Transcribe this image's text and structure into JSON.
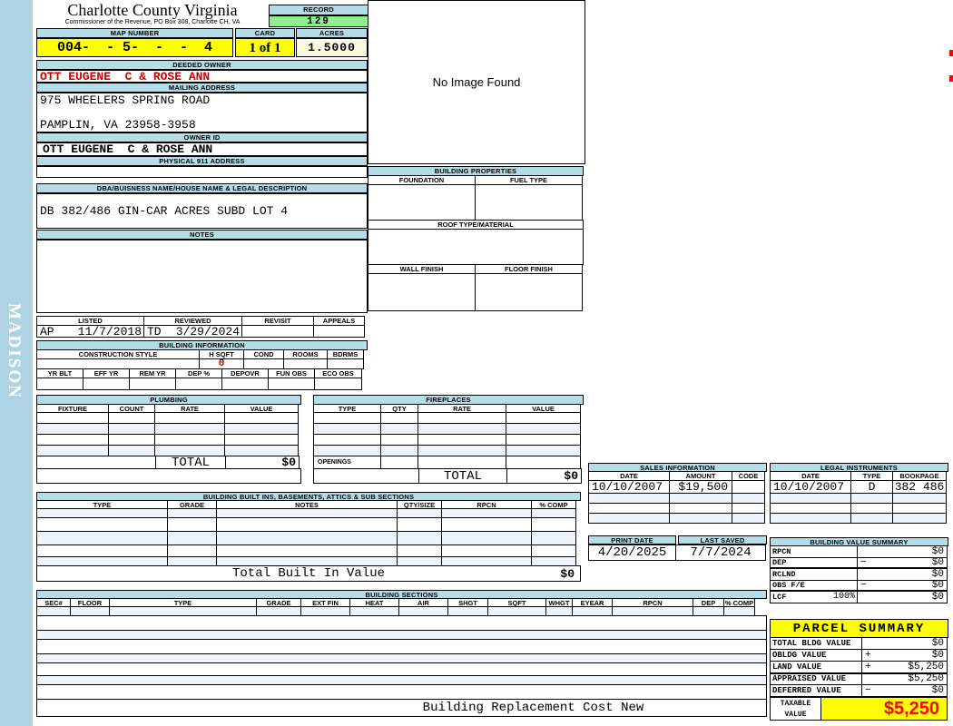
{
  "colors": {
    "header_blue": "#b6dce8",
    "sidebar_blue": "#aed3e2",
    "accent_yellow": "#ffff00",
    "record_green": "#90ee90",
    "acres_cream": "#fbf8e0",
    "owner_red": "#cc0000",
    "value_red": "#ff0000",
    "stripe_blue": "#eef3f9"
  },
  "sidebar": {
    "vertical_text": "MADISON"
  },
  "header": {
    "county_title": "Charlotte County Virginia",
    "county_subtitle": "Commissioner of the Revenue, PO Box 308, Charlotte CH, VA",
    "record_label": "RECORD",
    "record_value": "129",
    "map_number_label": "MAP NUMBER",
    "map_number_value": "004-  - 5-  -  -  4",
    "card_label": "CARD",
    "card_value": "1 of 1",
    "acres_label": "ACRES",
    "acres_value": "1.5000"
  },
  "owner": {
    "deeded_owner_label": "DEEDED OWNER",
    "deeded_owner_value": "OTT EUGENE  C & ROSE ANN",
    "mailing_address_label": "MAILING ADDRESS",
    "mailing_address_line1": "975 WHEELERS SPRING ROAD",
    "mailing_address_line2": "PAMPLIN, VA 23958-3958",
    "owner_id_label": "OWNER ID",
    "owner_id_value": "OTT EUGENE  C & ROSE ANN",
    "physical_address_label": "PHYSICAL 911 ADDRESS"
  },
  "legal_desc": {
    "dba_label": "DBA/BUISNESS NAME/HOUSE NAME & LEGAL DESCRIPTION",
    "dba_value": "DB 382/486 GIN-CAR ACRES SUBD LOT 4",
    "notes_label": "NOTES"
  },
  "review": {
    "columns": [
      "LISTED",
      "REVIEWED",
      "REVISIT",
      "APPEALS"
    ],
    "listed_by": "AP",
    "listed_date": "11/7/2018",
    "reviewed_by": "TD",
    "reviewed_date": "3/29/2024"
  },
  "building_info": {
    "title": "BUILDING INFORMATION",
    "row1_columns": [
      "CONSTRUCTION STYLE",
      "H SQFT",
      "COND",
      "ROOMS",
      "BDRMS"
    ],
    "h_sqft_value": "0",
    "row2_columns": [
      "YR BLT",
      "EFF YR",
      "REM YR",
      "DEP %",
      "DEPOVR",
      "FUN OBS",
      "ECO OBS"
    ]
  },
  "plumbing": {
    "title": "PLUMBING",
    "columns": [
      "FIXTURE",
      "COUNT",
      "RATE",
      "VALUE"
    ],
    "total_label": "TOTAL",
    "total_value": "$0"
  },
  "fireplaces": {
    "title": "FIREPLACES",
    "columns": [
      "TYPE",
      "QTY",
      "RATE",
      "VALUE"
    ],
    "openings_label": "OPENINGS",
    "total_label": "TOTAL",
    "total_value": "$0"
  },
  "built_ins": {
    "title": "BUILDING BUILT INS, BASEMENTS, ATTICS & SUB SECTIONS",
    "columns": [
      "TYPE",
      "GRADE",
      "NOTES",
      "QTY/SIZE",
      "RPCN",
      "% COMP"
    ],
    "total_label": "Total Built In Value",
    "total_value": "$0"
  },
  "building_sections": {
    "title": "BUILDING SECTIONS",
    "columns": [
      "SEC#",
      "FLOOR",
      "TYPE",
      "GRADE",
      "EXT FIN",
      "HEAT",
      "AIR",
      "SHGT",
      "SQFT",
      "WHGT",
      "EYEAR",
      "RPCN",
      "DEP",
      "% COMP"
    ],
    "footer_label": "Building Replacement Cost New"
  },
  "image_panel": {
    "no_image_text": "No Image Found"
  },
  "building_properties": {
    "title": "BUILDING PROPERTIES",
    "foundation_label": "FOUNDATION",
    "fuel_type_label": "FUEL TYPE",
    "roof_label": "ROOF TYPE/MATERIAL",
    "wall_finish_label": "WALL FINISH",
    "floor_finish_label": "FLOOR FINISH"
  },
  "sales": {
    "title": "SALES INFORMATION",
    "columns": [
      "DATE",
      "AMOUNT",
      "CODE"
    ],
    "rows": [
      {
        "date": "10/10/2007",
        "amount": "$19,500"
      }
    ]
  },
  "legal_instruments": {
    "title": "LEGAL INSTRUMENTS",
    "columns": [
      "DATE",
      "TYPE",
      "BOOKPAGE"
    ],
    "rows": [
      {
        "date": "10/10/2007",
        "type": "D",
        "bookpage": "382 486"
      }
    ]
  },
  "dates": {
    "print_date_label": "PRINT DATE",
    "print_date_value": "4/20/2025",
    "last_saved_label": "LAST SAVED",
    "last_saved_value": "7/7/2024"
  },
  "building_value_summary": {
    "title": "BUILDING VALUE SUMMARY",
    "rows": [
      {
        "label": "RPCN",
        "op": "",
        "value": "$0"
      },
      {
        "label": "DEP",
        "op": "−",
        "value": "$0"
      },
      {
        "label": "RCLND",
        "op": "",
        "value": "$0"
      },
      {
        "label": "OBS F/E",
        "op": "−",
        "value": "$0"
      },
      {
        "label": "LCF",
        "pct": "100%",
        "op": "",
        "value": "$0"
      }
    ]
  },
  "parcel_summary": {
    "title": "PARCEL SUMMARY",
    "rows": [
      {
        "label": "TOTAL BLDG VALUE",
        "op": "",
        "value": "$0"
      },
      {
        "label": "OBLDG VALUE",
        "op": "+",
        "value": "$0"
      },
      {
        "label": "LAND VALUE",
        "op": "+",
        "value": "$5,250"
      },
      {
        "label": "APPRAISED VALUE",
        "op": "",
        "value": "$5,250"
      },
      {
        "label": "DEFERRED VALUE",
        "op": "−",
        "value": "$0"
      }
    ],
    "taxable_label_line1": "TAXABLE",
    "taxable_label_line2": "VALUE",
    "taxable_value": "$5,250"
  }
}
